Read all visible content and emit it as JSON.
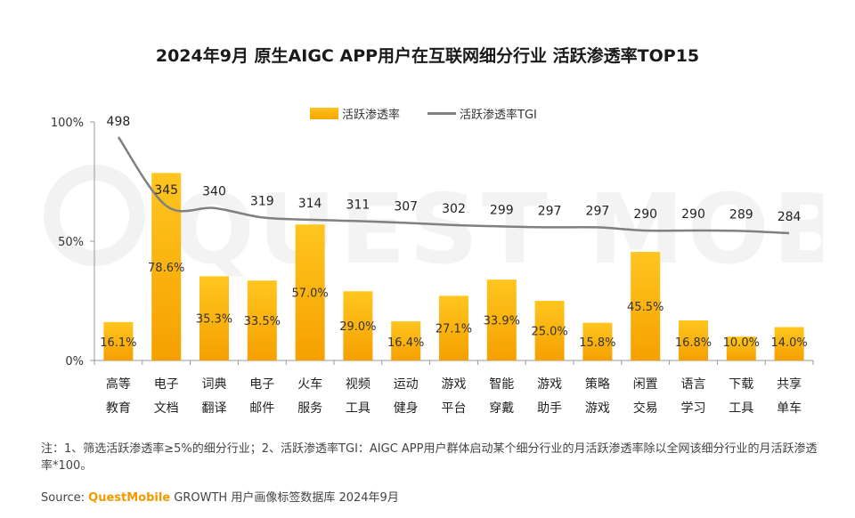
{
  "title": "2024年9月 原生AIGC APP用户在互联网细分行业 活跃渗透率TOP15",
  "watermark_text": "QUEST MOBILE",
  "colors": {
    "bar_top": "#ffc61f",
    "bar_bottom": "#f5a000",
    "line": "#808080",
    "axis": "#999999",
    "brand": "#f29a00"
  },
  "notes": "注：1、筛选活跃渗透率≥5%的细分行业；2、活跃渗透率TGI：AIGC APP用户群体启动某个细分行业的月活跃渗透率除以全网该细分行业的月活跃渗透率*100。",
  "source": {
    "prefix": "Source: ",
    "brand": "QuestMobile",
    "rest": " GROWTH 用户画像标签数据库 2024年9月"
  },
  "chart_data": {
    "type": "bar",
    "title": "2024年9月 原生AIGC APP用户在互联网细分行业 活跃渗透率TOP15",
    "categories": [
      [
        "高等",
        "教育"
      ],
      [
        "电子",
        "文档"
      ],
      [
        "词典",
        "翻译"
      ],
      [
        "电子",
        "邮件"
      ],
      [
        "火车",
        "服务"
      ],
      [
        "视频",
        "工具"
      ],
      [
        "运动",
        "健身"
      ],
      [
        "游戏",
        "平台"
      ],
      [
        "智能",
        "穿戴"
      ],
      [
        "游戏",
        "助手"
      ],
      [
        "策略",
        "游戏"
      ],
      [
        "闲置",
        "交易"
      ],
      [
        "语言",
        "学习"
      ],
      [
        "下载",
        "工具"
      ],
      [
        "共享",
        "单车"
      ]
    ],
    "series": [
      {
        "name": "活跃渗透率",
        "type": "bar",
        "values": [
          16.1,
          78.6,
          35.3,
          33.5,
          57.0,
          29.0,
          16.4,
          27.1,
          33.9,
          25.0,
          15.8,
          45.5,
          16.8,
          10.0,
          14.0
        ],
        "labels": [
          "16.1%",
          "78.6%",
          "35.3%",
          "33.5%",
          "57.0%",
          "29.0%",
          "16.4%",
          "27.1%",
          "33.9%",
          "25.0%",
          "15.8%",
          "45.5%",
          "16.8%",
          "10.0%",
          "14.0%"
        ]
      },
      {
        "name": "活跃渗透率TGI",
        "type": "line",
        "values": [
          498,
          345,
          340,
          319,
          314,
          311,
          307,
          302,
          299,
          297,
          297,
          290,
          290,
          289,
          284
        ]
      }
    ],
    "y_ticks": [
      "0%",
      "50%",
      "100%"
    ],
    "ylim": [
      0,
      100
    ],
    "legend_position": "top-center"
  }
}
